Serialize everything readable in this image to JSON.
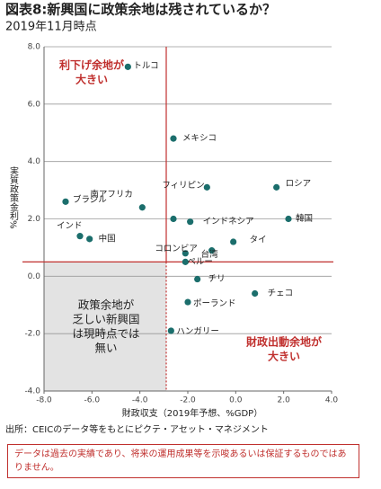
{
  "title": "図表8:新興国に政策余地は残されているか？",
  "subtitle": "2019年11月時点",
  "chart_data": {
    "type": "scatter",
    "x_label": "財政収支（2019年予想、%GDP）",
    "y_label": "実質政策金利%",
    "labels": [
      "トルコ",
      "メキシコ",
      "フィリピン",
      "ロシア",
      "ブラジル",
      "南アフリカ",
      "韓国",
      null,
      "インドネシア",
      "インド",
      "中国",
      "タイ",
      "台湾",
      "コロンビア",
      "ペルー",
      "チリ",
      "チェコ",
      "ポーランド",
      "ハンガリー"
    ],
    "x": [
      -4.5,
      -2.6,
      -1.2,
      1.7,
      -7.1,
      -3.9,
      2.2,
      -2.6,
      -1.9,
      -6.5,
      -6.1,
      -0.1,
      -1.0,
      -2.1,
      -2.1,
      -1.6,
      0.8,
      -2.0,
      -2.7
    ],
    "values": [
      7.3,
      4.8,
      3.1,
      3.1,
      2.6,
      2.4,
      2.0,
      2.0,
      1.9,
      1.4,
      1.3,
      1.2,
      0.9,
      0.8,
      0.5,
      -0.1,
      -0.6,
      -0.9,
      -1.9
    ],
    "color": "#1b6e6c",
    "xlim": [
      -8,
      4
    ],
    "ylim": [
      -4,
      8
    ],
    "xticks": [
      {
        "value": -8,
        "label": "-8.0"
      },
      {
        "value": -6,
        "label": "-6.0"
      },
      {
        "value": -4,
        "label": "-4.0"
      },
      {
        "value": -2,
        "label": "-2.0"
      },
      {
        "value": 0,
        "label": "0.0"
      },
      {
        "value": 2,
        "label": "2.0"
      },
      {
        "value": 4,
        "label": "4.0"
      }
    ],
    "yticks": [
      {
        "value": -4,
        "label": "-4.0"
      },
      {
        "value": -2,
        "label": "-2.0"
      },
      {
        "value": 0,
        "label": "0.0"
      },
      {
        "value": 2,
        "label": "2.0"
      },
      {
        "value": 4,
        "label": "4.0"
      },
      {
        "value": 6,
        "label": "6.0"
      },
      {
        "value": 8,
        "label": "8.0"
      }
    ],
    "grid": true,
    "reference_x": -2.9,
    "reference_y": 0.5,
    "annotations": [
      [
        "利下げ余地が",
        "大きい"
      ],
      [
        "財政出動余地が",
        "大きい"
      ],
      [
        "政策余地が",
        "乏しい新興国",
        "は現時点では",
        "無い"
      ]
    ]
  },
  "source": "出所：CEICのデータ等をもとにピクテ・アセット・マネジメント",
  "disclaimer": "データは過去の実績であり、将来の運用成果等を示唆あるいは保証するものではありません。"
}
